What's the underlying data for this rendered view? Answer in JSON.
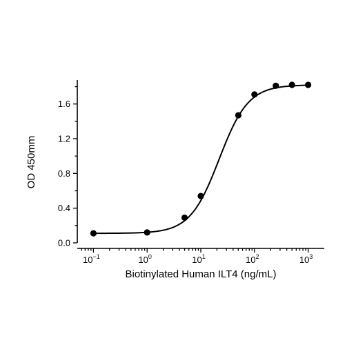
{
  "chart_data": {
    "type": "scatter",
    "title": "",
    "xlabel": "Biotinylated Human ILT4 (ng/mL)",
    "ylabel": "OD 450mm",
    "x_scale": "log",
    "xlim": [
      0.05,
      2000
    ],
    "ylim": [
      0,
      1.86
    ],
    "x_ticks": [
      {
        "value": 0.1,
        "base": "10",
        "exp": "−1"
      },
      {
        "value": 1,
        "base": "10",
        "exp": "0"
      },
      {
        "value": 10,
        "base": "10",
        "exp": "1"
      },
      {
        "value": 100,
        "base": "10",
        "exp": "2"
      },
      {
        "value": 1000,
        "base": "10",
        "exp": "3"
      }
    ],
    "y_ticks": [
      {
        "value": 0.0,
        "label": "0.0"
      },
      {
        "value": 0.4,
        "label": "0.4"
      },
      {
        "value": 0.8,
        "label": "0.8"
      },
      {
        "value": 1.2,
        "label": "1.2"
      },
      {
        "value": 1.6,
        "label": "1.6"
      }
    ],
    "y_minor_ticks": [
      0.2,
      0.6,
      1.0,
      1.4,
      1.8
    ],
    "series": [
      {
        "x": [
          0.1,
          1,
          5,
          10,
          50,
          100,
          250,
          500,
          1000
        ],
        "y": [
          0.11,
          0.12,
          0.29,
          0.54,
          1.47,
          1.71,
          1.81,
          1.82,
          1.82
        ]
      }
    ],
    "fit": {
      "model": "4PL",
      "bottom": 0.11,
      "top": 1.82,
      "ec50": 22,
      "hill": 1.6
    },
    "grid": false,
    "legend": "none"
  }
}
